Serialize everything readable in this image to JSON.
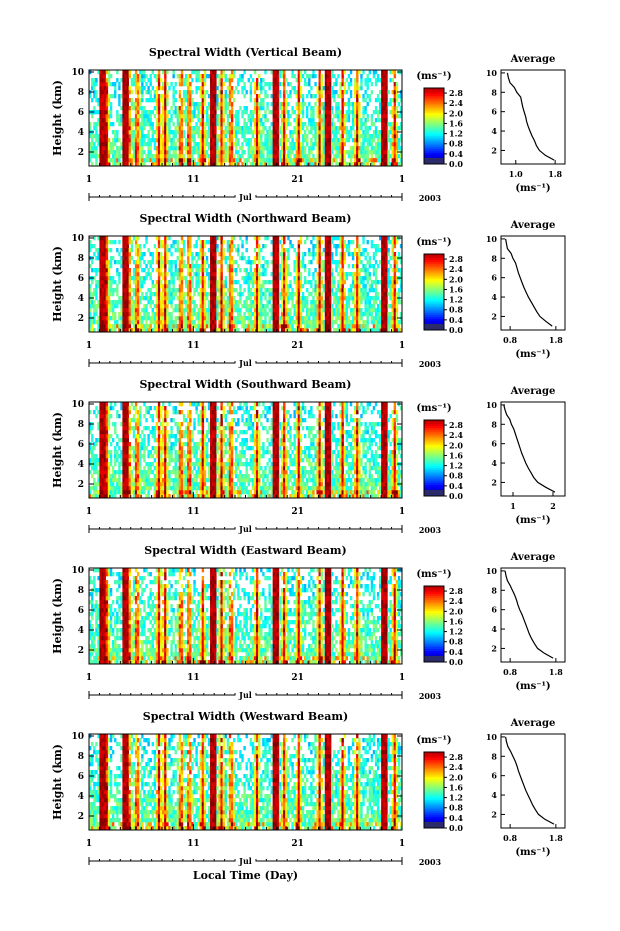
{
  "figure": {
    "xlabel": "Local Time (Day)",
    "month": "Jul",
    "year": "2003",
    "colorbar_unit": "(ms⁻¹)",
    "avg_title": "Average",
    "avg_xlabel": "(ms⁻¹)",
    "ylabel": "Height (km)"
  },
  "chart_data": [
    {
      "type": "heatmap",
      "title": "Spectral Width (Vertical Beam)",
      "x_ticks": [
        "1",
        "11",
        "21",
        "1"
      ],
      "x_range_days": [
        1,
        31
      ],
      "y_ticks": [
        "2",
        "4",
        "6",
        "8",
        "10"
      ],
      "y_range_km": [
        0.6,
        10.2
      ],
      "colorbar_ticks": [
        "0.0",
        "0.4",
        "0.8",
        "1.2",
        "1.6",
        "2.0",
        "2.4",
        "2.8"
      ],
      "colorbar_range": [
        0.0,
        3.0
      ],
      "average": {
        "title": "Average",
        "x_ticks": [
          "1.0",
          "1.8"
        ],
        "xlim": [
          0.7,
          2.0
        ],
        "y_ticks": [
          "2",
          "4",
          "6",
          "8",
          "10"
        ],
        "height_km": [
          1,
          1.5,
          2,
          2.5,
          3,
          3.5,
          4,
          4.5,
          5,
          5.5,
          6,
          6.5,
          7,
          7.5,
          8,
          8.5,
          9,
          9.5,
          10
        ],
        "width_ms": [
          1.78,
          1.6,
          1.48,
          1.42,
          1.38,
          1.33,
          1.29,
          1.25,
          1.22,
          1.2,
          1.17,
          1.14,
          1.12,
          1.1,
          1.02,
          0.97,
          0.88,
          0.85,
          0.83
        ]
      }
    },
    {
      "type": "heatmap",
      "title": "Spectral Width (Northward Beam)",
      "x_ticks": [
        "1",
        "11",
        "21",
        "1"
      ],
      "x_range_days": [
        1,
        31
      ],
      "y_ticks": [
        "2",
        "4",
        "6",
        "8",
        "10"
      ],
      "y_range_km": [
        0.6,
        10.2
      ],
      "colorbar_ticks": [
        "0.0",
        "0.4",
        "0.8",
        "1.2",
        "1.6",
        "2.0",
        "2.4",
        "2.8"
      ],
      "colorbar_range": [
        0.0,
        3.0
      ],
      "average": {
        "title": "Average",
        "x_ticks": [
          "0.8",
          "1.8"
        ],
        "xlim": [
          0.6,
          2.0
        ],
        "y_ticks": [
          "2",
          "4",
          "6",
          "8",
          "10"
        ],
        "height_km": [
          1,
          1.5,
          2,
          2.5,
          3,
          3.5,
          4,
          4.5,
          5,
          5.5,
          6,
          6.5,
          7,
          7.5,
          8,
          8.5,
          9,
          9.5,
          10
        ],
        "width_ms": [
          1.72,
          1.58,
          1.45,
          1.38,
          1.32,
          1.26,
          1.2,
          1.15,
          1.1,
          1.06,
          1.02,
          0.98,
          0.95,
          0.92,
          0.86,
          0.82,
          0.74,
          0.72,
          0.7
        ]
      }
    },
    {
      "type": "heatmap",
      "title": "Spectral Width (Southward Beam)",
      "x_ticks": [
        "1",
        "11",
        "21",
        "1"
      ],
      "x_range_days": [
        1,
        31
      ],
      "y_ticks": [
        "2",
        "4",
        "6",
        "8",
        "10"
      ],
      "y_range_km": [
        0.6,
        10.2
      ],
      "colorbar_ticks": [
        "0.0",
        "0.4",
        "0.8",
        "1.2",
        "1.6",
        "2.0",
        "2.4",
        "2.8"
      ],
      "colorbar_range": [
        0.0,
        3.0
      ],
      "average": {
        "title": "Average",
        "x_ticks": [
          "1",
          "2"
        ],
        "xlim": [
          0.7,
          2.3
        ],
        "y_ticks": [
          "2",
          "4",
          "6",
          "8",
          "10"
        ],
        "height_km": [
          1,
          1.5,
          2,
          2.5,
          3,
          3.5,
          4,
          4.5,
          5,
          5.5,
          6,
          6.5,
          7,
          7.5,
          8,
          8.5,
          9,
          9.5,
          10
        ],
        "width_ms": [
          2.05,
          1.82,
          1.62,
          1.52,
          1.45,
          1.38,
          1.32,
          1.27,
          1.22,
          1.18,
          1.14,
          1.1,
          1.06,
          1.02,
          0.96,
          0.92,
          0.84,
          0.8,
          0.77
        ]
      }
    },
    {
      "type": "heatmap",
      "title": "Spectral Width (Eastward Beam)",
      "x_ticks": [
        "1",
        "11",
        "21",
        "1"
      ],
      "x_range_days": [
        1,
        31
      ],
      "y_ticks": [
        "2",
        "4",
        "6",
        "8",
        "10"
      ],
      "y_range_km": [
        0.6,
        10.2
      ],
      "colorbar_ticks": [
        "0.0",
        "0.4",
        "0.8",
        "1.2",
        "1.6",
        "2.0",
        "2.4",
        "2.8"
      ],
      "colorbar_range": [
        0.0,
        3.0
      ],
      "average": {
        "title": "Average",
        "x_ticks": [
          "0.8",
          "1.8"
        ],
        "xlim": [
          0.6,
          2.0
        ],
        "y_ticks": [
          "2",
          "4",
          "6",
          "8",
          "10"
        ],
        "height_km": [
          1,
          1.5,
          2,
          2.5,
          3,
          3.5,
          4,
          4.5,
          5,
          5.5,
          6,
          6.5,
          7,
          7.5,
          8,
          8.5,
          9,
          9.5,
          10
        ],
        "width_ms": [
          1.74,
          1.55,
          1.4,
          1.33,
          1.27,
          1.22,
          1.18,
          1.14,
          1.1,
          1.06,
          1.01,
          0.97,
          0.94,
          0.9,
          0.85,
          0.8,
          0.74,
          0.71,
          0.69
        ]
      }
    },
    {
      "type": "heatmap",
      "title": "Spectral Width (Westward Beam)",
      "x_ticks": [
        "1",
        "11",
        "21",
        "1"
      ],
      "x_range_days": [
        1,
        31
      ],
      "y_ticks": [
        "2",
        "4",
        "6",
        "8",
        "10"
      ],
      "y_range_km": [
        0.6,
        10.2
      ],
      "colorbar_ticks": [
        "0.0",
        "0.4",
        "0.8",
        "1.2",
        "1.6",
        "2.0",
        "2.4",
        "2.8"
      ],
      "colorbar_range": [
        0.0,
        3.0
      ],
      "average": {
        "title": "Average",
        "x_ticks": [
          "0.8",
          "1.8"
        ],
        "xlim": [
          0.6,
          2.0
        ],
        "y_ticks": [
          "2",
          "4",
          "6",
          "8",
          "10"
        ],
        "height_km": [
          1,
          1.5,
          2,
          2.5,
          3,
          3.5,
          4,
          4.5,
          5,
          5.5,
          6,
          6.5,
          7,
          7.5,
          8,
          8.5,
          9,
          9.5,
          10
        ],
        "width_ms": [
          1.76,
          1.56,
          1.42,
          1.35,
          1.29,
          1.24,
          1.19,
          1.14,
          1.1,
          1.06,
          1.02,
          0.98,
          0.95,
          0.91,
          0.86,
          0.81,
          0.75,
          0.72,
          0.7
        ]
      }
    }
  ]
}
